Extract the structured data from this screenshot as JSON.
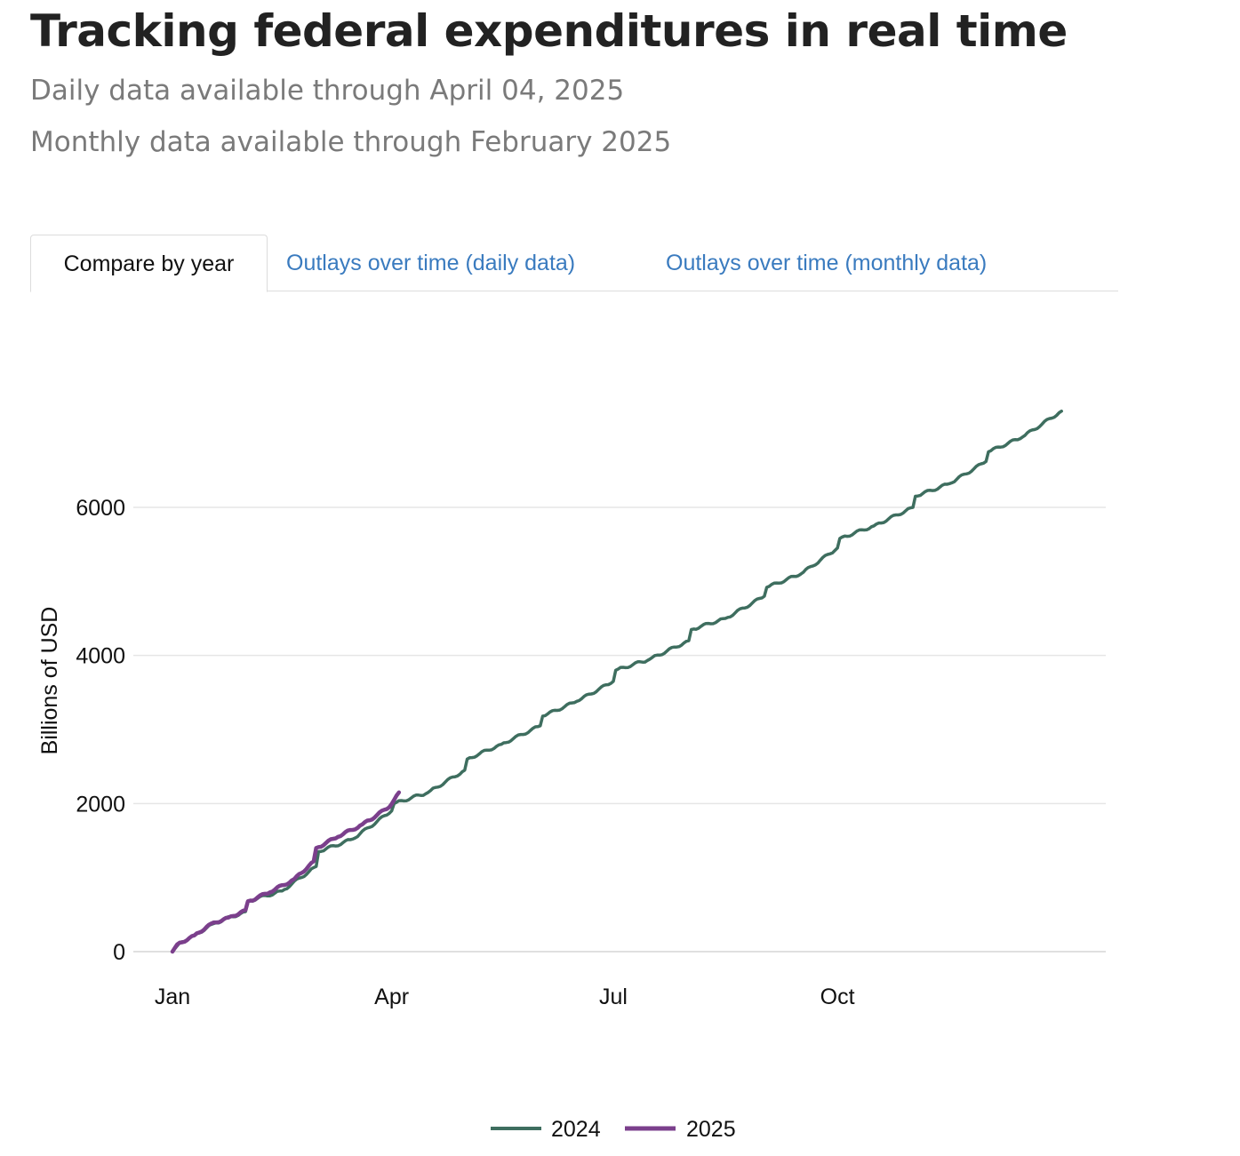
{
  "header": {
    "title": "Tracking federal expenditures in real time",
    "daily_note": "Daily data available through April 04, 2025",
    "monthly_note": "Monthly data available through February 2025"
  },
  "tabs": [
    {
      "label": "Compare by year",
      "active": true
    },
    {
      "label": "Outlays over time (daily data)",
      "active": false
    },
    {
      "label": "Outlays over time (monthly data)",
      "active": false
    }
  ],
  "colors": {
    "series_2024": "#3e6e5f",
    "series_2025": "#7b3f8c",
    "link": "#3a7bbf"
  },
  "chart_data": {
    "type": "line",
    "title": "",
    "xlabel": "",
    "ylabel": "Billions of USD",
    "x_ticks": [
      "Jan",
      "Apr",
      "Jul",
      "Oct"
    ],
    "y_ticks": [
      0,
      2000,
      4000,
      6000
    ],
    "ylim": [
      -120,
      7800
    ],
    "grid": true,
    "legend_position": "bottom-center",
    "series": [
      {
        "name": "2024",
        "color": "#3e6e5f",
        "points": [
          [
            "2024-01-01",
            0
          ],
          [
            "2024-01-04",
            120
          ],
          [
            "2024-01-10",
            220
          ],
          [
            "2024-01-18",
            380
          ],
          [
            "2024-01-31",
            540
          ],
          [
            "2024-02-01",
            680
          ],
          [
            "2024-02-15",
            820
          ],
          [
            "2024-02-29",
            1150
          ],
          [
            "2024-03-01",
            1350
          ],
          [
            "2024-03-15",
            1520
          ],
          [
            "2024-03-31",
            1900
          ],
          [
            "2024-04-01",
            2000
          ],
          [
            "2024-04-15",
            2150
          ],
          [
            "2024-04-30",
            2450
          ],
          [
            "2024-05-01",
            2600
          ],
          [
            "2024-05-15",
            2800
          ],
          [
            "2024-05-31",
            3050
          ],
          [
            "2024-06-01",
            3180
          ],
          [
            "2024-06-15",
            3380
          ],
          [
            "2024-06-30",
            3650
          ],
          [
            "2024-07-01",
            3800
          ],
          [
            "2024-07-15",
            3950
          ],
          [
            "2024-07-31",
            4200
          ],
          [
            "2024-08-01",
            4350
          ],
          [
            "2024-08-15",
            4500
          ],
          [
            "2024-08-31",
            4800
          ],
          [
            "2024-09-01",
            4920
          ],
          [
            "2024-09-15",
            5100
          ],
          [
            "2024-09-30",
            5450
          ],
          [
            "2024-10-01",
            5580
          ],
          [
            "2024-10-15",
            5750
          ],
          [
            "2024-10-31",
            6000
          ],
          [
            "2024-11-01",
            6150
          ],
          [
            "2024-11-15",
            6320
          ],
          [
            "2024-11-30",
            6620
          ],
          [
            "2024-12-01",
            6750
          ],
          [
            "2024-12-15",
            6950
          ],
          [
            "2024-12-31",
            7300
          ]
        ]
      },
      {
        "name": "2025",
        "color": "#7b3f8c",
        "points": [
          [
            "2025-01-01",
            0
          ],
          [
            "2025-01-03",
            100
          ],
          [
            "2025-01-10",
            220
          ],
          [
            "2025-01-17",
            380
          ],
          [
            "2025-01-24",
            460
          ],
          [
            "2025-01-31",
            560
          ],
          [
            "2025-02-01",
            680
          ],
          [
            "2025-02-10",
            800
          ],
          [
            "2025-02-20",
            980
          ],
          [
            "2025-02-28",
            1220
          ],
          [
            "2025-03-01",
            1400
          ],
          [
            "2025-03-10",
            1550
          ],
          [
            "2025-03-20",
            1720
          ],
          [
            "2025-03-31",
            1950
          ],
          [
            "2025-04-04",
            2150
          ]
        ]
      }
    ]
  }
}
